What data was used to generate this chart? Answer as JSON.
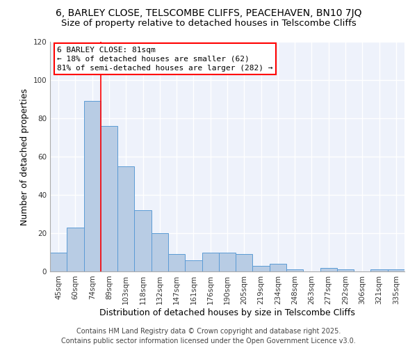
{
  "title": "6, BARLEY CLOSE, TELSCOMBE CLIFFS, PEACEHAVEN, BN10 7JQ",
  "subtitle": "Size of property relative to detached houses in Telscombe Cliffs",
  "xlabel": "Distribution of detached houses by size in Telscombe Cliffs",
  "ylabel": "Number of detached properties",
  "categories": [
    "45sqm",
    "60sqm",
    "74sqm",
    "89sqm",
    "103sqm",
    "118sqm",
    "132sqm",
    "147sqm",
    "161sqm",
    "176sqm",
    "190sqm",
    "205sqm",
    "219sqm",
    "234sqm",
    "248sqm",
    "263sqm",
    "277sqm",
    "292sqm",
    "306sqm",
    "321sqm",
    "335sqm"
  ],
  "values": [
    10,
    23,
    89,
    76,
    55,
    32,
    20,
    9,
    6,
    10,
    10,
    9,
    3,
    4,
    1,
    0,
    2,
    1,
    0,
    1,
    1
  ],
  "bar_color": "#b8cce4",
  "bar_edge_color": "#5b9bd5",
  "red_line_x": 2.5,
  "annotation_title": "6 BARLEY CLOSE: 81sqm",
  "annotation_line1": "← 18% of detached houses are smaller (62)",
  "annotation_line2": "81% of semi-detached houses are larger (282) →",
  "ylim": [
    0,
    120
  ],
  "yticks": [
    0,
    20,
    40,
    60,
    80,
    100,
    120
  ],
  "background_color": "#eef2fb",
  "grid_color": "#ffffff",
  "footer1": "Contains HM Land Registry data © Crown copyright and database right 2025.",
  "footer2": "Contains public sector information licensed under the Open Government Licence v3.0.",
  "title_fontsize": 10,
  "subtitle_fontsize": 9.5,
  "axis_label_fontsize": 9,
  "tick_fontsize": 7.5,
  "annotation_fontsize": 8,
  "footer_fontsize": 7
}
